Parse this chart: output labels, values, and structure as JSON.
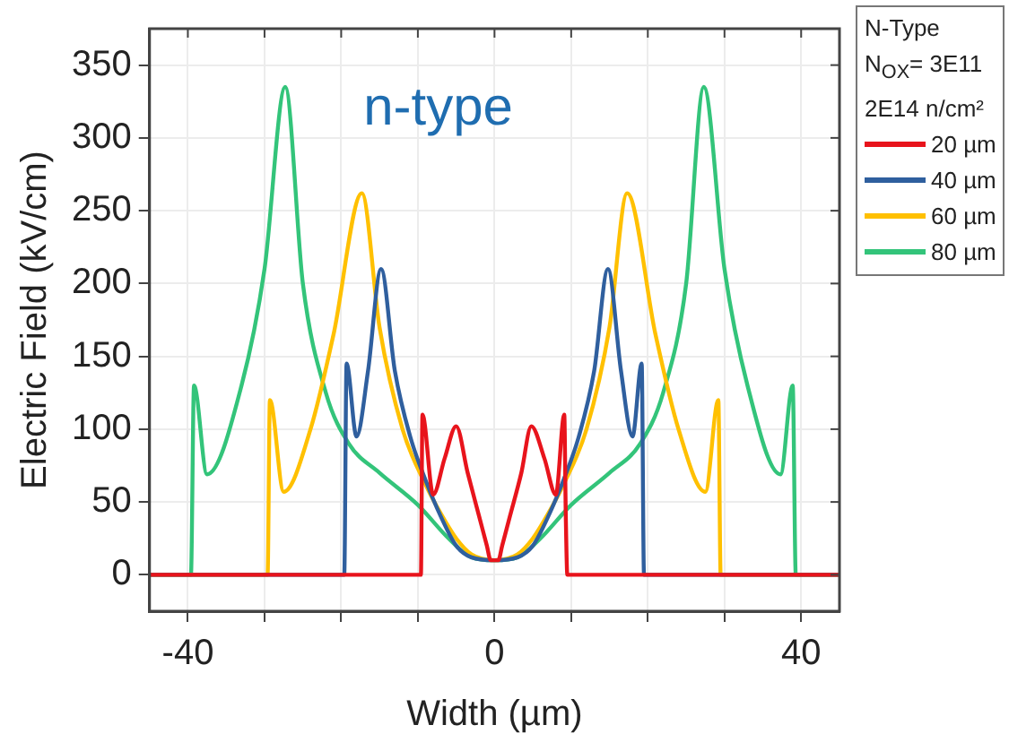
{
  "chart_data": {
    "type": "line",
    "xlabel": "Width (µm)",
    "ylabel": "Electric Field (kV/cm)",
    "legend_title": "N-Type\nN$_{OX}$= 3E11\n2E14 n/cm²",
    "annotations": [
      "n-type"
    ],
    "xlim": [
      -45,
      45
    ],
    "xticks": [
      -40,
      {
        "value": -30,
        "label": null
      },
      {
        "value": -20,
        "label": null
      },
      {
        "value": -10,
        "label": null
      },
      0,
      {
        "value": 10,
        "label": null
      },
      {
        "value": 20,
        "label": null
      },
      {
        "value": 30,
        "label": null
      },
      40
    ],
    "ylim": [
      -25,
      375
    ],
    "yticks": [
      0,
      50,
      100,
      150,
      200,
      250,
      300,
      350
    ],
    "grid": true,
    "legend": "right",
    "marker": "none",
    "line_style": "solid",
    "series": [
      {
        "name": "20 µm",
        "color": "#e8141c",
        "x": [
          -45,
          -9.6,
          -9.4,
          -8,
          -6.5,
          -5,
          -3.5,
          -2,
          -1,
          -0.5,
          0,
          0.5,
          1,
          2,
          3.5,
          4.8,
          6.5,
          8,
          9.1,
          9.3,
          9.5,
          45
        ],
        "values": [
          0,
          0,
          110,
          55,
          80,
          102,
          70,
          40,
          20,
          10,
          10,
          10,
          20,
          40,
          70,
          102,
          80,
          55,
          110,
          40,
          0,
          0
        ]
      },
      {
        "name": "40 µm",
        "color": "#2f5f9e",
        "x": [
          -45,
          -19.6,
          -19.3,
          -18,
          -16.5,
          -14.8,
          -13,
          -11,
          -9,
          -7,
          -5,
          -3,
          0,
          3,
          5,
          7,
          9,
          11,
          13,
          14.8,
          16.5,
          18,
          19.2,
          19.5,
          45
        ],
        "values": [
          0,
          0,
          145,
          95,
          140,
          210,
          140,
          95,
          65,
          40,
          20,
          12,
          10,
          12,
          20,
          40,
          65,
          95,
          140,
          210,
          140,
          95,
          145,
          0,
          0
        ]
      },
      {
        "name": "60 µm",
        "color": "#ffc000",
        "x": [
          -45,
          -29.6,
          -29.3,
          -27.5,
          -24,
          -21,
          -17.3,
          -15,
          -12,
          -9,
          -7,
          -5,
          -3,
          0,
          3,
          5,
          7,
          9,
          12,
          15,
          17.3,
          21,
          24,
          27.5,
          29.2,
          29.5,
          45
        ],
        "values": [
          0,
          0,
          120,
          57,
          100,
          165,
          262,
          170,
          100,
          62,
          42,
          25,
          14,
          10,
          14,
          25,
          42,
          62,
          100,
          170,
          262,
          165,
          100,
          57,
          120,
          0,
          0
        ]
      },
      {
        "name": "80 µm",
        "color": "#33c47a",
        "x": [
          -45,
          -39.6,
          -39.2,
          -37.5,
          -33,
          -30,
          -27.3,
          -25,
          -22,
          -19,
          -15,
          -10,
          -6,
          -3,
          0,
          3,
          6,
          10,
          15,
          19,
          22,
          25,
          27.3,
          30,
          33,
          37.3,
          38.9,
          39.3,
          45
        ],
        "values": [
          0,
          0,
          130,
          69,
          130,
          210,
          335,
          200,
          125,
          90,
          70,
          48,
          25,
          12,
          10,
          12,
          25,
          48,
          70,
          90,
          125,
          200,
          335,
          210,
          130,
          69,
          130,
          0,
          0
        ]
      }
    ]
  }
}
